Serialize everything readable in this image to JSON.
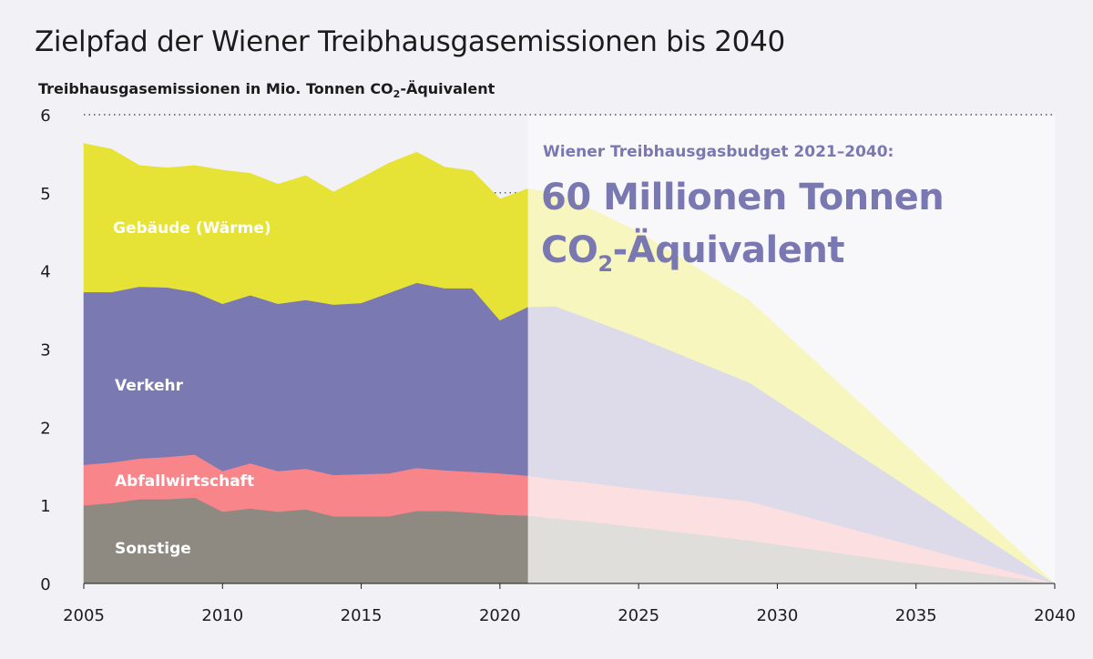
{
  "title": "Zielpfad der Wiener Treibhausgasemissionen bis 2040",
  "subtitle": {
    "main": "Treibhausgasemissionen in Mio. Tonnen CO",
    "sub": "2",
    "suffix": "-Äquivalent"
  },
  "budget": {
    "label": "Wiener Treibhausgasbudget 2021–2040:",
    "line1": "60 Millionen Tonnen",
    "line2_main": "CO",
    "line2_sub": "2",
    "line2_suffix": "-Äquivalent"
  },
  "colors": {
    "sonstige": "#8e8a82",
    "abfallwirtschaft": "#f7858a",
    "verkehr": "#7a79b2",
    "gebaeude": "#e7e236",
    "sonstige_future": "#e0deda",
    "abfallwirtschaft_future": "#fcdfe0",
    "verkehr_future": "#dddbea",
    "gebaeude_future": "#f7f6be",
    "budget_box": "#f8f8fa",
    "background": "#f2f2f6"
  },
  "chart_data": {
    "type": "area",
    "stacked": true,
    "title": "Zielpfad der Wiener Treibhausgasemissionen bis 2040",
    "ylabel": "Treibhausgasemissionen in Mio. Tonnen CO2-Äquivalent",
    "xlabel": "",
    "ylim": [
      0,
      6
    ],
    "xlim": [
      2005,
      2040
    ],
    "y_ticks": [
      "0",
      "1",
      "2",
      "3",
      "4",
      "5",
      "6"
    ],
    "x_ticks": [
      "2005",
      "2010",
      "2015",
      "2020",
      "2025",
      "2030",
      "2035",
      "2040"
    ],
    "historical": {
      "x": [
        2005,
        2006,
        2007,
        2008,
        2009,
        2010,
        2011,
        2012,
        2013,
        2014,
        2015,
        2016,
        2017,
        2018,
        2019,
        2020,
        2021
      ],
      "series": [
        {
          "name": "Sonstige",
          "values": [
            1.0,
            1.03,
            1.08,
            1.08,
            1.1,
            0.92,
            0.96,
            0.92,
            0.95,
            0.86,
            0.86,
            0.86,
            0.93,
            0.93,
            0.91,
            0.88,
            0.87
          ]
        },
        {
          "name": "Abfallwirtschaft",
          "values": [
            0.52,
            0.52,
            0.52,
            0.54,
            0.55,
            0.52,
            0.58,
            0.52,
            0.52,
            0.53,
            0.54,
            0.55,
            0.55,
            0.52,
            0.52,
            0.53,
            0.51
          ]
        },
        {
          "name": "Verkehr",
          "values": [
            2.21,
            2.18,
            2.2,
            2.17,
            2.08,
            2.14,
            2.15,
            2.14,
            2.16,
            2.18,
            2.19,
            2.31,
            2.37,
            2.33,
            2.35,
            1.96,
            2.16
          ]
        },
        {
          "name": "Gebäude (Wärme)",
          "values": [
            1.9,
            1.83,
            1.55,
            1.53,
            1.62,
            1.71,
            1.56,
            1.53,
            1.59,
            1.44,
            1.6,
            1.66,
            1.67,
            1.55,
            1.5,
            1.55,
            1.51
          ]
        }
      ]
    },
    "target_path": {
      "x": [
        2021,
        2022,
        2023,
        2025,
        2029,
        2040
      ],
      "series": [
        {
          "name": "Sonstige",
          "values": [
            0.87,
            0.83,
            0.8,
            0.72,
            0.55,
            0.0
          ]
        },
        {
          "name": "Abfallwirtschaft",
          "values": [
            0.51,
            0.5,
            0.5,
            0.49,
            0.5,
            0.0
          ]
        },
        {
          "name": "Verkehr",
          "values": [
            2.16,
            2.22,
            2.12,
            1.94,
            1.52,
            0.0
          ]
        },
        {
          "name": "Gebäude (Wärme)",
          "values": [
            1.51,
            1.45,
            1.42,
            1.35,
            1.05,
            0.0
          ]
        }
      ]
    },
    "area_labels": [
      "Gebäude (Wärme)",
      "Verkehr",
      "Abfallwirtschaft",
      "Sonstige"
    ]
  }
}
